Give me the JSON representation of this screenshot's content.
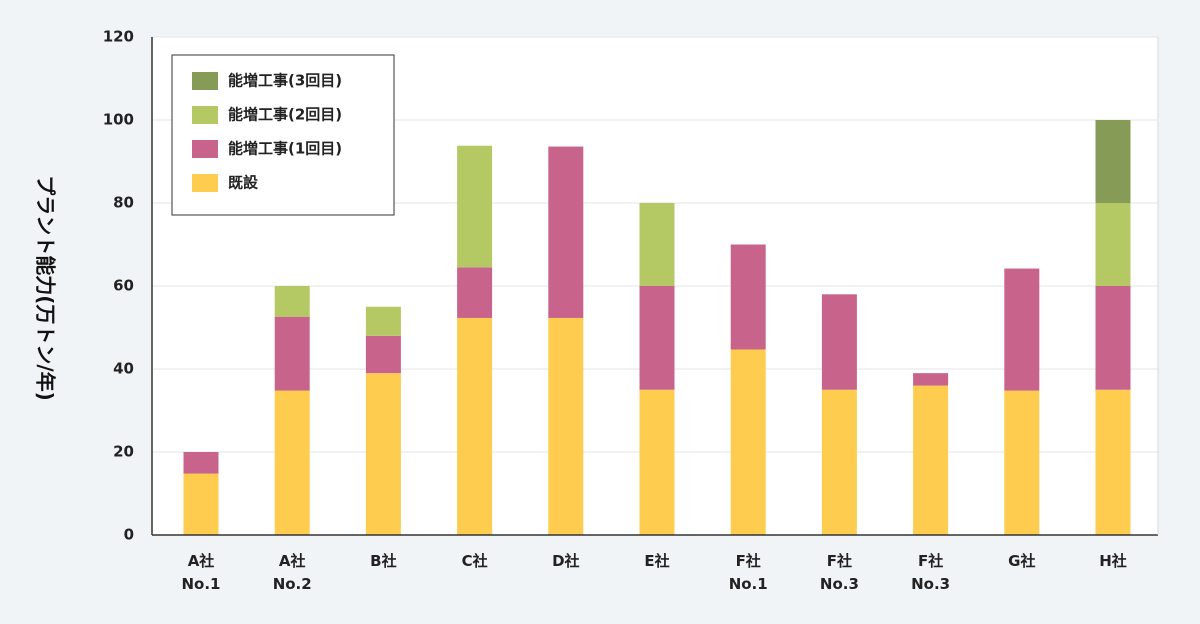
{
  "chart_data": {
    "type": "bar",
    "stacked": true,
    "ylabel": "プラント能力(万トン/年)",
    "ylim": [
      0,
      120
    ],
    "yticks": [
      0,
      20,
      40,
      60,
      80,
      100,
      120
    ],
    "grid": true,
    "legend_position": "top-left",
    "categories": [
      [
        "A社",
        "No.1"
      ],
      [
        "A社",
        "No.2"
      ],
      [
        "B社"
      ],
      [
        "C社"
      ],
      [
        "D社"
      ],
      [
        "E社"
      ],
      [
        "F社",
        "No.1"
      ],
      [
        "F社",
        "No.3"
      ],
      [
        "F社",
        "No.3"
      ],
      [
        "G社"
      ],
      [
        "H社"
      ]
    ],
    "series": [
      {
        "name": "既設",
        "color": "#fecd50",
        "values": [
          14.8,
          34.8,
          39,
          52.3,
          52.3,
          35,
          44.7,
          35,
          36,
          34.8,
          35
        ]
      },
      {
        "name": "能増工事(1回目)",
        "color": "#c8648c",
        "values": [
          5.2,
          17.8,
          9,
          12.2,
          41.3,
          25,
          25.3,
          23,
          3,
          29.4,
          25
        ]
      },
      {
        "name": "能増工事(2回目)",
        "color": "#b4c864",
        "values": [
          0,
          7.4,
          7,
          29.3,
          0,
          20,
          0,
          0,
          0,
          0,
          20
        ]
      },
      {
        "name": "能増工事(3回目)",
        "color": "#869b56",
        "values": [
          0,
          0,
          0,
          0,
          0,
          0,
          0,
          0,
          0,
          0,
          20
        ]
      }
    ]
  }
}
